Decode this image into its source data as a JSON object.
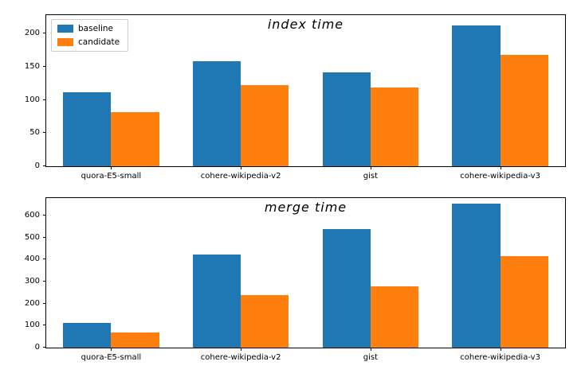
{
  "chart_data": [
    {
      "type": "bar",
      "title": "index time",
      "categories": [
        "quora-E5-small",
        "cohere-wikipedia-v2",
        "gist",
        "cohere-wikipedia-v3"
      ],
      "series": [
        {
          "name": "baseline",
          "color": "#1f77b4",
          "values": [
            112,
            158,
            142,
            212
          ]
        },
        {
          "name": "candidate",
          "color": "#ff7f0e",
          "values": [
            82,
            123,
            119,
            168
          ]
        }
      ],
      "ylim": [
        0,
        228
      ],
      "yticks": [
        0,
        50,
        100,
        150,
        200
      ],
      "grid": false,
      "legend_position": "upper-left",
      "has_legend": true
    },
    {
      "type": "bar",
      "title": "merge time",
      "categories": [
        "quora-E5-small",
        "cohere-wikipedia-v2",
        "gist",
        "cohere-wikipedia-v3"
      ],
      "series": [
        {
          "name": "baseline",
          "color": "#1f77b4",
          "values": [
            112,
            425,
            538,
            655
          ]
        },
        {
          "name": "candidate",
          "color": "#ff7f0e",
          "values": [
            70,
            240,
            278,
            415
          ]
        }
      ],
      "ylim": [
        0,
        680
      ],
      "yticks": [
        0,
        100,
        200,
        300,
        400,
        500,
        600
      ],
      "grid": false,
      "has_legend": false
    }
  ]
}
